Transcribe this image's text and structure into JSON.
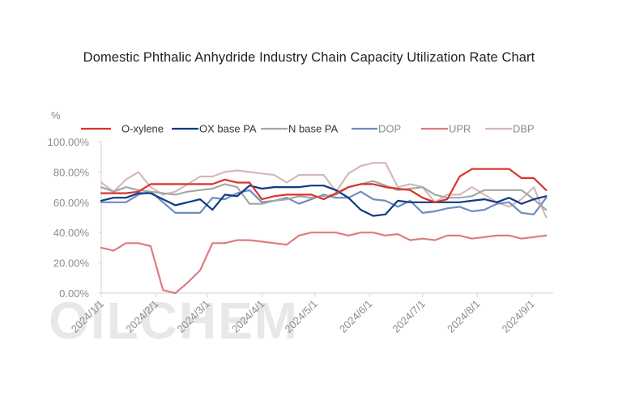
{
  "chart_data": {
    "type": "line",
    "title": "Domestic Phthalic Anhydride Industry Chain Capacity Utilization Rate Chart",
    "ylabel": "%",
    "xlabel": "",
    "ylim": [
      0,
      100
    ],
    "yticks": [
      "0.00%",
      "20.00%",
      "40.00%",
      "60.00%",
      "80.00%",
      "100.00%"
    ],
    "ytick_values": [
      0,
      20,
      40,
      60,
      80,
      100
    ],
    "xtick_labels": [
      "2024/1/1",
      "2024/2/1",
      "2024/3/1",
      "2024/4/1",
      "2024/5/1",
      "2024/6/1",
      "2024/7/1",
      "2024/8/1",
      "2024/9/1"
    ],
    "xtick_days": [
      0,
      31,
      60,
      91,
      121,
      152,
      182,
      213,
      244
    ],
    "x_days": [
      0,
      7,
      14,
      21,
      28,
      35,
      42,
      49,
      56,
      63,
      70,
      77,
      84,
      91,
      98,
      105,
      112,
      119,
      126,
      133,
      140,
      147,
      154,
      161,
      168,
      175,
      182,
      189,
      196,
      203,
      210,
      217,
      224,
      231,
      238,
      245,
      252
    ],
    "x_max_day": 256,
    "legend_position": "top",
    "grid": false,
    "watermark": "OILCHEM",
    "series": [
      {
        "name": "O-xylene",
        "color": "#d9332b",
        "values": [
          66,
          66,
          66,
          67,
          72,
          72,
          72,
          72,
          72,
          72,
          75,
          73,
          73,
          62,
          64,
          65,
          65,
          65,
          62,
          66,
          70,
          72,
          72,
          70,
          69,
          68,
          63,
          60,
          62,
          77,
          82,
          82,
          82,
          82,
          76,
          76,
          68
        ]
      },
      {
        "name": "OX base PA",
        "color": "#0e3a86",
        "values": [
          61,
          63,
          63,
          66,
          66,
          62,
          58,
          60,
          62,
          55,
          65,
          64,
          71,
          69,
          70,
          70,
          70,
          71,
          71,
          68,
          63,
          55,
          51,
          52,
          61,
          60,
          60,
          60,
          60,
          60,
          61,
          62,
          60,
          63,
          59,
          62,
          64
        ]
      },
      {
        "name": "N base PA",
        "color": "#a6a6a6",
        "values": [
          70,
          67,
          70,
          68,
          67,
          66,
          65,
          67,
          68,
          69,
          72,
          70,
          59,
          59,
          61,
          62,
          64,
          63,
          64,
          65,
          70,
          72,
          74,
          71,
          68,
          69,
          70,
          65,
          63,
          63,
          64,
          68,
          68,
          68,
          68,
          62,
          55
        ]
      },
      {
        "name": "DOP",
        "color": "#6e8cbf",
        "values": [
          60,
          60,
          60,
          65,
          67,
          60,
          53,
          53,
          53,
          63,
          62,
          66,
          68,
          60,
          61,
          63,
          59,
          62,
          65,
          63,
          63,
          67,
          62,
          61,
          57,
          61,
          53,
          54,
          56,
          57,
          54,
          55,
          59,
          60,
          53,
          52,
          63
        ]
      },
      {
        "name": "UPR",
        "color": "#e07a80",
        "values": [
          30,
          28,
          33,
          33,
          31,
          2,
          0,
          7,
          15,
          33,
          33,
          35,
          35,
          34,
          33,
          32,
          38,
          40,
          40,
          40,
          38,
          40,
          40,
          38,
          39,
          35,
          36,
          35,
          38,
          38,
          36,
          37,
          38,
          38,
          36,
          37,
          38
        ]
      },
      {
        "name": "DBP",
        "color": "#d6b8b8",
        "values": [
          73,
          67,
          75,
          80,
          70,
          65,
          67,
          72,
          77,
          77,
          80,
          81,
          80,
          79,
          78,
          73,
          78,
          78,
          78,
          67,
          79,
          84,
          86,
          86,
          70,
          72,
          70,
          60,
          65,
          65,
          70,
          65,
          60,
          57,
          62,
          70,
          50
        ]
      }
    ]
  }
}
